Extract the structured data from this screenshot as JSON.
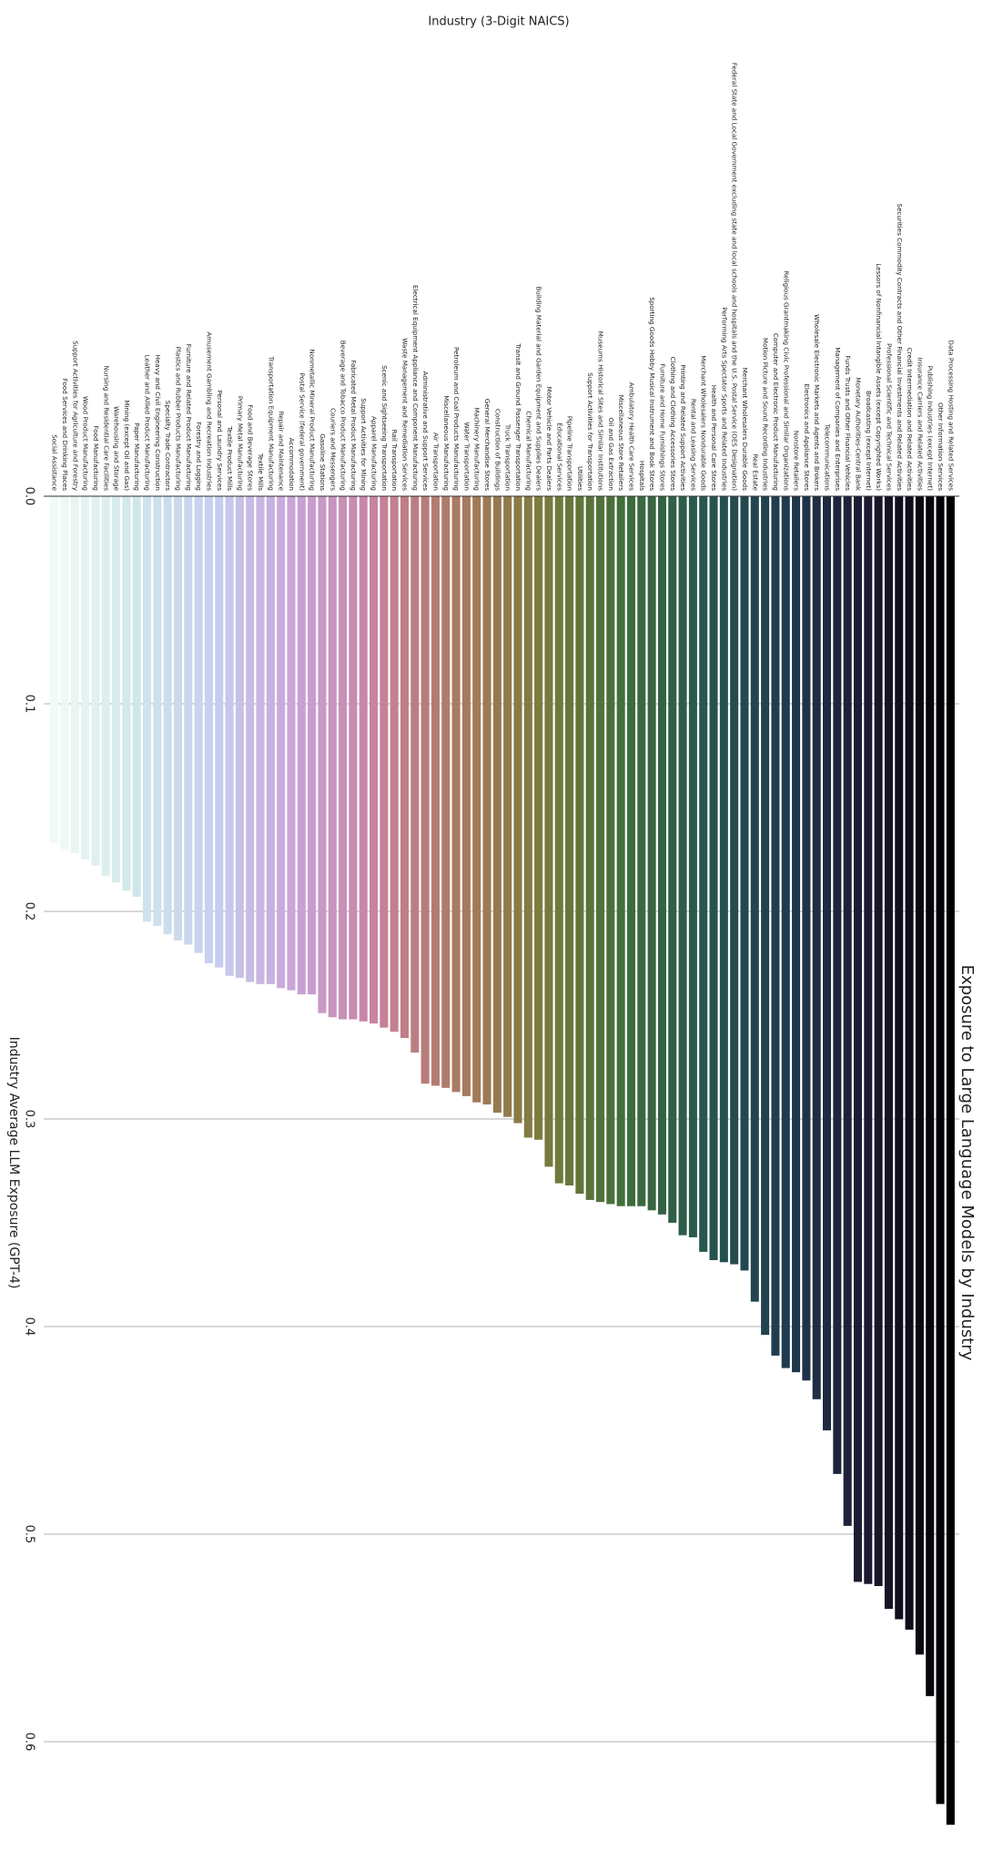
{
  "chart_data": {
    "type": "bar",
    "title": "Exposure to Large Language Models by Industry",
    "x_label": "Industry (3-Digit NAICS)",
    "y_label": "Industry Average LLM Exposure (GPT-4)",
    "categories": [
      "Social Assistance",
      "Food Services and Drinking Places",
      "Support Activities for Agriculture and Forestry",
      "Wood Product Manufacturing",
      "Food Manufacturing",
      "Nursing and Residential Care Facilities",
      "Warehousing and Storage",
      "Mining (except Oil and Gas)",
      "Paper Manufacturing",
      "Leather and Allied Product Manufacturing",
      "Heavy and Civil Engineering Construction",
      "Specialty Trade Contractors",
      "Plastics and Rubber Products Manufacturing",
      "Furniture and Related Product Manufacturing",
      "Forestry and Logging",
      "Amusement Gambling and Recreation Industries",
      "Personal and Laundry Services",
      "Textile Product Mills",
      "Primary Metal Manufacturing",
      "Food and Beverage Stores",
      "Textile Mills",
      "Transportation Equipment Manufacturing",
      "Repair and Maintenance",
      "Accommodation",
      "Postal Service (federal government)",
      "Nonmetallic Mineral Product Manufacturing",
      "Gasoline Stations",
      "Couriers and Messengers",
      "Beverage and Tobacco Product Manufacturing",
      "Fabricated Metal Product Manufacturing",
      "Support Activities for Mining",
      "Apparel Manufacturing",
      "Scenic and Sightseeing Transportation",
      "Rail Transportation",
      "Waste Management and Remediation Services",
      "Electrical Equipment Appliance and Component Manufacturing",
      "Administrative and Support Services",
      "Air Transportation",
      "Miscellaneous Manufacturing",
      "Petroleum and Coal Products Manufacturing",
      "Water Transportation",
      "Machinery Manufacturing",
      "General Merchandise Stores",
      "Construction of Buildings",
      "Truck Transportation",
      "Transit and Ground Passenger Transportation",
      "Chemical Manufacturing",
      "Building Material and Garden Equipment and Supplies Dealers",
      "Motor Vehicle and Parts Dealers",
      "Educational Services",
      "Pipeline Transportation",
      "Utilities",
      "Support Activities for Transportation",
      "Museums Historical Sites and Similar Institutions",
      "Oil and Gas Extraction",
      "Miscellaneous Store Retailers",
      "Ambulatory Health Care Services",
      "Hospitals",
      "Sporting Goods Hobby Musical Instrument and Book Stores",
      "Furniture and Home Furnishings Stores",
      "Clothing and Clothing Accessories Stores",
      "Printing and Related Support Activities",
      "Rental and Leasing Services",
      "Merchant Wholesalers Nondurable Goods",
      "Health and Personal Care Stores",
      "Performing Arts Spectator Sports and Related Industries",
      "Federal State and Local Government excluding state and local schools and hospitals and the U.S. Postal Service (OES Designation)",
      "Merchant Wholesalers Durable Goods",
      "Real Estate",
      "Motion Picture and Sound Recording Industries",
      "Computer and Electronic Product Manufacturing",
      "Religious Grantmaking Civic Professional and Similar Organizations",
      "Nonstore Retailers",
      "Electronics and Appliance Stores",
      "Wholesale Electronic Markets and Agents and Brokers",
      "Telecommunications",
      "Management of Companies and Enterprises",
      "Funds Trusts and Other Financial Vehicles",
      "Monetary Authorities-Central Bank",
      "Broadcasting (except Internet)",
      "Lessors of Nonfinancial Intangible Assets (except Copyrighted Works)",
      "Professional Scientific and Technical Services",
      "Securities Commodity Contracts and Other Financial Investments and Related Activities",
      "Credit Intermediation and Related Activities",
      "Insurance Carriers and Related Activities",
      "Publishing Industries (except Internet)",
      "Other Information Services",
      "Data Processing Hosting and Related Services"
    ],
    "values": [
      0.167,
      0.17,
      0.172,
      0.175,
      0.178,
      0.183,
      0.186,
      0.19,
      0.193,
      0.205,
      0.207,
      0.211,
      0.214,
      0.216,
      0.22,
      0.225,
      0.227,
      0.231,
      0.232,
      0.234,
      0.235,
      0.235,
      0.237,
      0.238,
      0.24,
      0.24,
      0.249,
      0.251,
      0.252,
      0.252,
      0.253,
      0.254,
      0.256,
      0.258,
      0.261,
      0.268,
      0.283,
      0.284,
      0.285,
      0.287,
      0.289,
      0.292,
      0.293,
      0.297,
      0.299,
      0.302,
      0.309,
      0.31,
      0.323,
      0.331,
      0.332,
      0.336,
      0.339,
      0.34,
      0.341,
      0.342,
      0.342,
      0.342,
      0.344,
      0.346,
      0.35,
      0.356,
      0.357,
      0.364,
      0.368,
      0.369,
      0.37,
      0.373,
      0.388,
      0.404,
      0.414,
      0.42,
      0.422,
      0.426,
      0.435,
      0.45,
      0.471,
      0.496,
      0.523,
      0.524,
      0.525,
      0.536,
      0.541,
      0.546,
      0.558,
      0.578,
      0.63,
      0.64
    ],
    "palette": [
      "#f1faf5",
      "#cfe7ea",
      "#c6cdee",
      "#c8a2d6",
      "#c7819b",
      "#a97a60",
      "#7c7a3c",
      "#3f6e3a",
      "#265650",
      "#1f3a4e",
      "#1d1930",
      "#000000"
    ],
    "ylim": [
      0,
      0.65
    ],
    "yticks": [
      {
        "value": 0,
        "label": "0.0"
      },
      0.1,
      0.2,
      0.3,
      0.4,
      0.5,
      0.6
    ],
    "grid": true
  }
}
